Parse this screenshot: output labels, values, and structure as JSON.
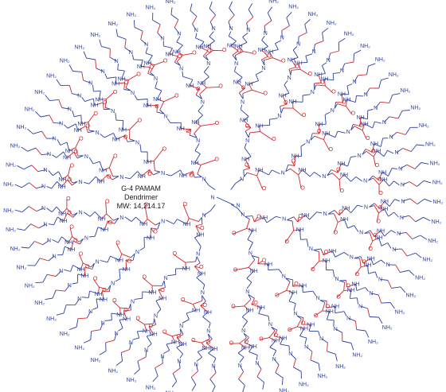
{
  "molecule": {
    "generation": "G-4 PAMAM",
    "kind": "Dendrimer",
    "mw_label": "MW: 14,214.17"
  },
  "atoms": {
    "core_nitrogen": "N",
    "branch_nitrogen": "N",
    "amide_nh": "NH",
    "carbonyl_oxygen": "O",
    "terminal_amine": "NH2",
    "terminal_amine_display": "NH₂"
  },
  "structure": {
    "branches_from_core": 4,
    "branching_generations": 4,
    "terminal_groups": 64
  },
  "colors": {
    "nitrogen_blue": "#2b3fa0",
    "carbonyl_red": "#d0262b",
    "background": "#ffffff"
  }
}
